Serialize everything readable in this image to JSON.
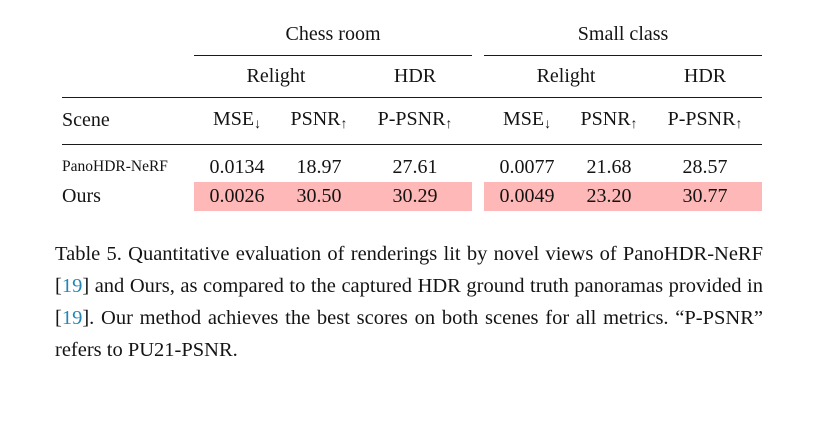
{
  "table": {
    "group_headers": [
      {
        "label": "Chess room"
      },
      {
        "label": "Small class"
      }
    ],
    "sub_headers": {
      "relight": "Relight",
      "hdr": "HDR"
    },
    "metric_headers": {
      "scene": "Scene",
      "mse": {
        "text": "MSE",
        "arrow": "↓"
      },
      "psnr": {
        "text": "PSNR",
        "arrow": "↑"
      },
      "ppsnr": {
        "text": "P-PSNR",
        "arrow": "↑"
      }
    },
    "rows": [
      {
        "scene": "PanoHDR-NeRF",
        "cells": [
          "0.0134",
          "18.97",
          "27.61",
          "0.0077",
          "21.68",
          "28.57"
        ]
      },
      {
        "scene": "Ours",
        "cells": [
          "0.0026",
          "30.50",
          "30.29",
          "0.0049",
          "23.20",
          "30.77"
        ]
      }
    ],
    "highlight_color": "#ffb8b8"
  },
  "caption": {
    "seg1": "Table 5.  Quantitative evaluation of renderings lit by novel views of PanoHDR-NeRF [",
    "cite1": "19",
    "seg2": "] and Ours, as compared to the captured HDR ground truth panoramas provided in [",
    "cite2": "19",
    "seg3": "].  Our method achieves the best scores on both scenes for all metrics. “P-PSNR” refers to PU21-PSNR.",
    "cite_color": "#2287b5"
  }
}
